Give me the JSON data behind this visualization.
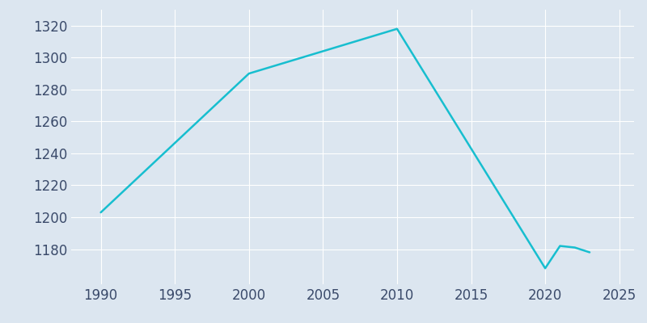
{
  "years": [
    1990,
    2000,
    2005,
    2010,
    2020,
    2021,
    2022,
    2023
  ],
  "population": [
    1203,
    1290,
    1304,
    1318,
    1168,
    1182,
    1181,
    1178
  ],
  "line_color": "#17becf",
  "plot_bg_color": "#dce6f0",
  "fig_bg_color": "#dce6f0",
  "grid_color": "#ffffff",
  "tick_color": "#3a4a6a",
  "line_width": 1.8,
  "ylim": [
    1158,
    1330
  ],
  "xlim": [
    1988,
    2026
  ],
  "yticks": [
    1180,
    1200,
    1220,
    1240,
    1260,
    1280,
    1300,
    1320
  ],
  "xticks": [
    1990,
    1995,
    2000,
    2005,
    2010,
    2015,
    2020,
    2025
  ],
  "tick_fontsize": 12
}
